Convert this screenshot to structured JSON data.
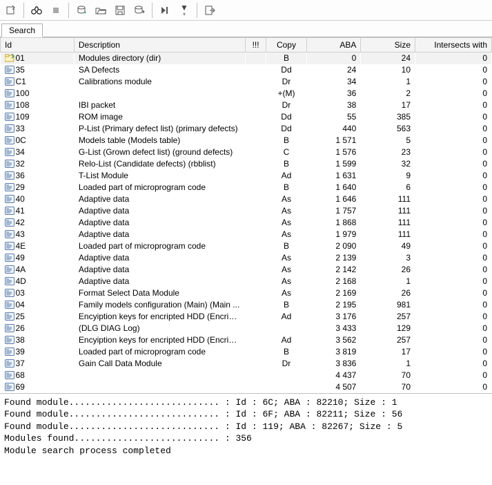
{
  "toolbar": {
    "buttons": [
      "refresh-icon",
      "binoculars-icon",
      "stop-icon",
      "db-add-icon",
      "open-icon",
      "save-icon",
      "db-export-icon",
      "step-icon",
      "filter-icon",
      "exit-icon"
    ]
  },
  "tabs": {
    "search_label": "Search"
  },
  "columns": {
    "id": "Id",
    "description": "Description",
    "flag": "!!!",
    "copy": "Copy",
    "aba": "ABA",
    "size": "Size",
    "intersects": "Intersects with"
  },
  "rows": [
    {
      "icon": "folder",
      "id": "01",
      "desc": "Modules directory (dir)",
      "flag": "",
      "copy": "B",
      "aba": "0",
      "size": "24",
      "ints": "0"
    },
    {
      "icon": "mod",
      "id": "35",
      "desc": "SA Defects",
      "flag": "",
      "copy": "Dd",
      "aba": "24",
      "size": "10",
      "ints": "0"
    },
    {
      "icon": "mod",
      "id": "C1",
      "desc": "Calibrations module",
      "flag": "",
      "copy": "Dr",
      "aba": "34",
      "size": "1",
      "ints": "0"
    },
    {
      "icon": "mod",
      "id": "100",
      "desc": "",
      "flag": "",
      "copy": "+(M)",
      "aba": "36",
      "size": "2",
      "ints": "0"
    },
    {
      "icon": "mod",
      "id": "108",
      "desc": "IBI packet",
      "flag": "",
      "copy": "Dr",
      "aba": "38",
      "size": "17",
      "ints": "0"
    },
    {
      "icon": "mod",
      "id": "109",
      "desc": "ROM image",
      "flag": "",
      "copy": "Dd",
      "aba": "55",
      "size": "385",
      "ints": "0"
    },
    {
      "icon": "mod",
      "id": "33",
      "desc": "P-List (Primary defect list) (primary defects)",
      "flag": "",
      "copy": "Dd",
      "aba": "440",
      "size": "563",
      "ints": "0"
    },
    {
      "icon": "mod",
      "id": "0C",
      "desc": "Models table (Models table)",
      "flag": "",
      "copy": "B",
      "aba": "1 571",
      "size": "5",
      "ints": "0"
    },
    {
      "icon": "mod",
      "id": "34",
      "desc": "G-List (Grown defect list) (ground defects)",
      "flag": "",
      "copy": "C",
      "aba": "1 576",
      "size": "23",
      "ints": "0"
    },
    {
      "icon": "mod",
      "id": "32",
      "desc": "Relo-List (Candidate defects) (rbblist)",
      "flag": "",
      "copy": "B",
      "aba": "1 599",
      "size": "32",
      "ints": "0"
    },
    {
      "icon": "mod",
      "id": "36",
      "desc": "T-List Module",
      "flag": "",
      "copy": "Ad",
      "aba": "1 631",
      "size": "9",
      "ints": "0"
    },
    {
      "icon": "mod",
      "id": "29",
      "desc": "Loaded part of microprogram code",
      "flag": "",
      "copy": "B",
      "aba": "1 640",
      "size": "6",
      "ints": "0"
    },
    {
      "icon": "mod",
      "id": "40",
      "desc": "Adaptive data",
      "flag": "",
      "copy": "As",
      "aba": "1 646",
      "size": "111",
      "ints": "0"
    },
    {
      "icon": "mod",
      "id": "41",
      "desc": "Adaptive data",
      "flag": "",
      "copy": "As",
      "aba": "1 757",
      "size": "111",
      "ints": "0"
    },
    {
      "icon": "mod",
      "id": "42",
      "desc": "Adaptive data",
      "flag": "",
      "copy": "As",
      "aba": "1 868",
      "size": "111",
      "ints": "0"
    },
    {
      "icon": "mod",
      "id": "43",
      "desc": "Adaptive data",
      "flag": "",
      "copy": "As",
      "aba": "1 979",
      "size": "111",
      "ints": "0"
    },
    {
      "icon": "mod",
      "id": "4E",
      "desc": "Loaded part of microprogram code",
      "flag": "",
      "copy": "B",
      "aba": "2 090",
      "size": "49",
      "ints": "0"
    },
    {
      "icon": "mod",
      "id": "49",
      "desc": "Adaptive data",
      "flag": "",
      "copy": "As",
      "aba": "2 139",
      "size": "3",
      "ints": "0"
    },
    {
      "icon": "mod",
      "id": "4A",
      "desc": "Adaptive data",
      "flag": "",
      "copy": "As",
      "aba": "2 142",
      "size": "26",
      "ints": "0"
    },
    {
      "icon": "mod",
      "id": "4D",
      "desc": "Adaptive data",
      "flag": "",
      "copy": "As",
      "aba": "2 168",
      "size": "1",
      "ints": "0"
    },
    {
      "icon": "mod",
      "id": "03",
      "desc": "Format Select Data Module",
      "flag": "",
      "copy": "As",
      "aba": "2 169",
      "size": "26",
      "ints": "0"
    },
    {
      "icon": "mod",
      "id": "04",
      "desc": "Family models configuration (Main) (Main ...",
      "flag": "",
      "copy": "B",
      "aba": "2 195",
      "size": "981",
      "ints": "0"
    },
    {
      "icon": "mod",
      "id": "25",
      "desc": "Encyiption keys for encripted HDD (Encripti...",
      "flag": "",
      "copy": "Ad",
      "aba": "3 176",
      "size": "257",
      "ints": "0"
    },
    {
      "icon": "mod",
      "id": "26",
      "desc": " (DLG DIAG Log)",
      "flag": "",
      "copy": "",
      "aba": "3 433",
      "size": "129",
      "ints": "0"
    },
    {
      "icon": "mod",
      "id": "38",
      "desc": "Encyiption keys for encripted HDD (Encripti...",
      "flag": "",
      "copy": "Ad",
      "aba": "3 562",
      "size": "257",
      "ints": "0"
    },
    {
      "icon": "mod",
      "id": "39",
      "desc": "Loaded part of microprogram code",
      "flag": "",
      "copy": "B",
      "aba": "3 819",
      "size": "17",
      "ints": "0"
    },
    {
      "icon": "mod",
      "id": "37",
      "desc": "Gain Call Data Module",
      "flag": "",
      "copy": "Dr",
      "aba": "3 836",
      "size": "1",
      "ints": "0"
    },
    {
      "icon": "mod",
      "id": "68",
      "desc": "",
      "flag": "",
      "copy": "",
      "aba": "4 437",
      "size": "70",
      "ints": "0"
    },
    {
      "icon": "mod",
      "id": "69",
      "desc": "",
      "flag": "",
      "copy": "",
      "aba": "4 507",
      "size": "70",
      "ints": "0"
    }
  ],
  "log_lines": [
    "Found module............................ : Id : 6C; ABA : 82210; Size : 1",
    "Found module............................ : Id : 6F; ABA : 82211; Size : 56",
    "Found module............................ : Id : 119; ABA : 82267; Size : 5",
    "Modules found........................... : 356",
    "Module search process completed"
  ]
}
